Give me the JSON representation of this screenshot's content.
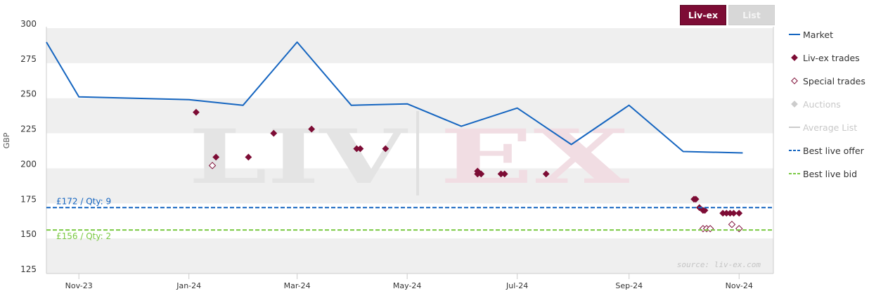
{
  "tabs": [
    {
      "label": "Liv-ex",
      "active": true,
      "color": "#7d0c35"
    },
    {
      "label": "List",
      "active": false,
      "color": "#d7d7d7"
    }
  ],
  "watermark": {
    "left": "LIV",
    "right": "EX"
  },
  "source_text": "source: liv-ex.com",
  "chart_data": {
    "type": "line",
    "title": "",
    "xlabel": "",
    "ylabel": "GBP",
    "ylim": [
      125,
      300
    ],
    "yticks": [
      125,
      150,
      175,
      200,
      225,
      250,
      275,
      300
    ],
    "xlim": [
      "2023-10-14",
      "2024-11-20"
    ],
    "xticks": [
      {
        "date": "2023-11-01",
        "label": "Nov-23"
      },
      {
        "date": "2024-01-01",
        "label": "Jan-24"
      },
      {
        "date": "2024-03-01",
        "label": "Mar-24"
      },
      {
        "date": "2024-05-01",
        "label": "May-24"
      },
      {
        "date": "2024-07-01",
        "label": "Jul-24"
      },
      {
        "date": "2024-09-01",
        "label": "Sep-24"
      },
      {
        "date": "2024-11-01",
        "label": "Nov-24"
      }
    ],
    "grid": "alternating-bands",
    "legend_position": "right",
    "series": [
      {
        "name": "Market",
        "type": "line",
        "color": "#1565c0",
        "points": [
          {
            "x": "2023-10-14",
            "y": 290
          },
          {
            "x": "2023-11-01",
            "y": 251
          },
          {
            "x": "2024-01-01",
            "y": 249
          },
          {
            "x": "2024-01-31",
            "y": 245
          },
          {
            "x": "2024-03-01",
            "y": 290
          },
          {
            "x": "2024-03-31",
            "y": 245
          },
          {
            "x": "2024-05-01",
            "y": 246
          },
          {
            "x": "2024-05-31",
            "y": 230
          },
          {
            "x": "2024-07-01",
            "y": 243
          },
          {
            "x": "2024-07-31",
            "y": 217
          },
          {
            "x": "2024-09-01",
            "y": 245
          },
          {
            "x": "2024-10-01",
            "y": 212
          },
          {
            "x": "2024-11-03",
            "y": 211
          }
        ]
      },
      {
        "name": "Liv-ex trades",
        "type": "scatter",
        "marker": "diamond-filled",
        "color": "#7d0c35",
        "points": [
          {
            "x": "2024-01-05",
            "y": 240
          },
          {
            "x": "2024-01-16",
            "y": 208
          },
          {
            "x": "2024-02-03",
            "y": 208
          },
          {
            "x": "2024-02-17",
            "y": 225
          },
          {
            "x": "2024-03-09",
            "y": 228
          },
          {
            "x": "2024-04-03",
            "y": 214
          },
          {
            "x": "2024-04-05",
            "y": 214
          },
          {
            "x": "2024-04-19",
            "y": 214
          },
          {
            "x": "2024-06-09",
            "y": 196
          },
          {
            "x": "2024-06-09",
            "y": 198
          },
          {
            "x": "2024-06-11",
            "y": 196
          },
          {
            "x": "2024-06-24",
            "y": 196
          },
          {
            "x": "2024-06-22",
            "y": 196
          },
          {
            "x": "2024-07-17",
            "y": 196
          },
          {
            "x": "2024-10-07",
            "y": 178
          },
          {
            "x": "2024-10-08",
            "y": 178
          },
          {
            "x": "2024-10-10",
            "y": 172
          },
          {
            "x": "2024-10-12",
            "y": 170
          },
          {
            "x": "2024-10-13",
            "y": 170
          },
          {
            "x": "2024-10-23",
            "y": 168
          },
          {
            "x": "2024-10-25",
            "y": 168
          },
          {
            "x": "2024-10-27",
            "y": 168
          },
          {
            "x": "2024-10-29",
            "y": 168
          },
          {
            "x": "2024-11-01",
            "y": 168
          }
        ]
      },
      {
        "name": "Special trades",
        "type": "scatter",
        "marker": "diamond-open",
        "color": "#7d0c35",
        "points": [
          {
            "x": "2024-01-14",
            "y": 202
          },
          {
            "x": "2024-10-12",
            "y": 157
          },
          {
            "x": "2024-10-14",
            "y": 157
          },
          {
            "x": "2024-10-16",
            "y": 157
          },
          {
            "x": "2024-10-28",
            "y": 160
          },
          {
            "x": "2024-11-01",
            "y": 157
          }
        ]
      },
      {
        "name": "Auctions",
        "type": "scatter",
        "marker": "diamond-filled",
        "color": "#c8c8c8",
        "disabled": true,
        "points": []
      },
      {
        "name": "Average List",
        "type": "line",
        "color": "#c8c8c8",
        "disabled": true,
        "points": []
      },
      {
        "name": "Best live offer",
        "type": "hline",
        "dash": "dashed",
        "color": "#1565c0",
        "y": 172,
        "label": "£172 / Qty: 9"
      },
      {
        "name": "Best live bid",
        "type": "hline",
        "dash": "dashed",
        "color": "#7ac943",
        "y": 156,
        "label": "£156 / Qty: 2"
      }
    ]
  }
}
